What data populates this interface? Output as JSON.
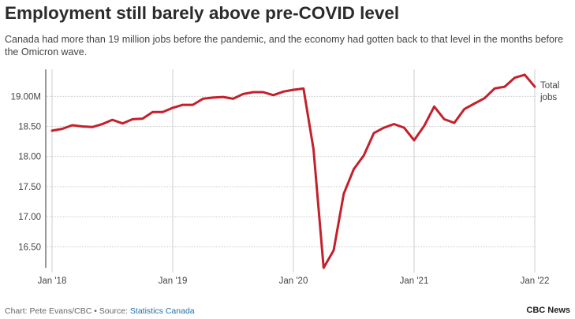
{
  "header": {
    "title": "Employment still barely above pre-COVID level",
    "subtitle": "Canada had more than 19 million jobs before the pandemic, and the economy had gotten back to that level in the months before the Omicron wave."
  },
  "footer": {
    "credit": "Chart: Pete Evans/CBC • Source: ",
    "source_link": "Statistics Canada",
    "brand": "CBC News"
  },
  "colors": {
    "line": "#c4202b",
    "grid": "#cccccc",
    "axis": "#333333"
  },
  "chart_data": {
    "type": "line",
    "title": "Employment still barely above pre-COVID level",
    "xlabel": "",
    "ylabel": "",
    "ylim": [
      16.15,
      19.45
    ],
    "yticks": [
      16.5,
      17.0,
      17.5,
      18.0,
      18.5,
      19.0
    ],
    "ytick_labels": [
      "16.50",
      "17.00",
      "17.50",
      "18.00",
      "18.50",
      "19.00M"
    ],
    "xticks": [
      {
        "label": "Jan '18",
        "index": 0
      },
      {
        "label": "Jan '19",
        "index": 12
      },
      {
        "label": "Jan '20",
        "index": 24
      },
      {
        "label": "Jan '21",
        "index": 36
      },
      {
        "label": "Jan '22",
        "index": 48
      }
    ],
    "series": [
      {
        "name": "Total jobs",
        "label_lines": [
          "Total",
          "jobs"
        ],
        "x": [
          "2018-01",
          "2018-02",
          "2018-03",
          "2018-04",
          "2018-05",
          "2018-06",
          "2018-07",
          "2018-08",
          "2018-09",
          "2018-10",
          "2018-11",
          "2018-12",
          "2019-01",
          "2019-02",
          "2019-03",
          "2019-04",
          "2019-05",
          "2019-06",
          "2019-07",
          "2019-08",
          "2019-09",
          "2019-10",
          "2019-11",
          "2019-12",
          "2020-01",
          "2020-02",
          "2020-03",
          "2020-04",
          "2020-05",
          "2020-06",
          "2020-07",
          "2020-08",
          "2020-09",
          "2020-10",
          "2020-11",
          "2020-12",
          "2021-01",
          "2021-02",
          "2021-03",
          "2021-04",
          "2021-05",
          "2021-06",
          "2021-07",
          "2021-08",
          "2021-09",
          "2021-10",
          "2021-11",
          "2021-12",
          "2022-01"
        ],
        "values": [
          18.43,
          18.46,
          18.52,
          18.5,
          18.49,
          18.54,
          18.61,
          18.55,
          18.62,
          18.63,
          18.74,
          18.74,
          18.81,
          18.86,
          18.86,
          18.96,
          18.98,
          18.99,
          18.96,
          19.04,
          19.07,
          19.07,
          19.02,
          19.08,
          19.11,
          19.13,
          18.12,
          16.15,
          16.44,
          17.38,
          17.79,
          18.02,
          18.39,
          18.48,
          18.54,
          18.48,
          18.27,
          18.51,
          18.83,
          18.62,
          18.56,
          18.79,
          18.88,
          18.97,
          19.13,
          19.16,
          19.31,
          19.36,
          19.16
        ]
      }
    ]
  }
}
